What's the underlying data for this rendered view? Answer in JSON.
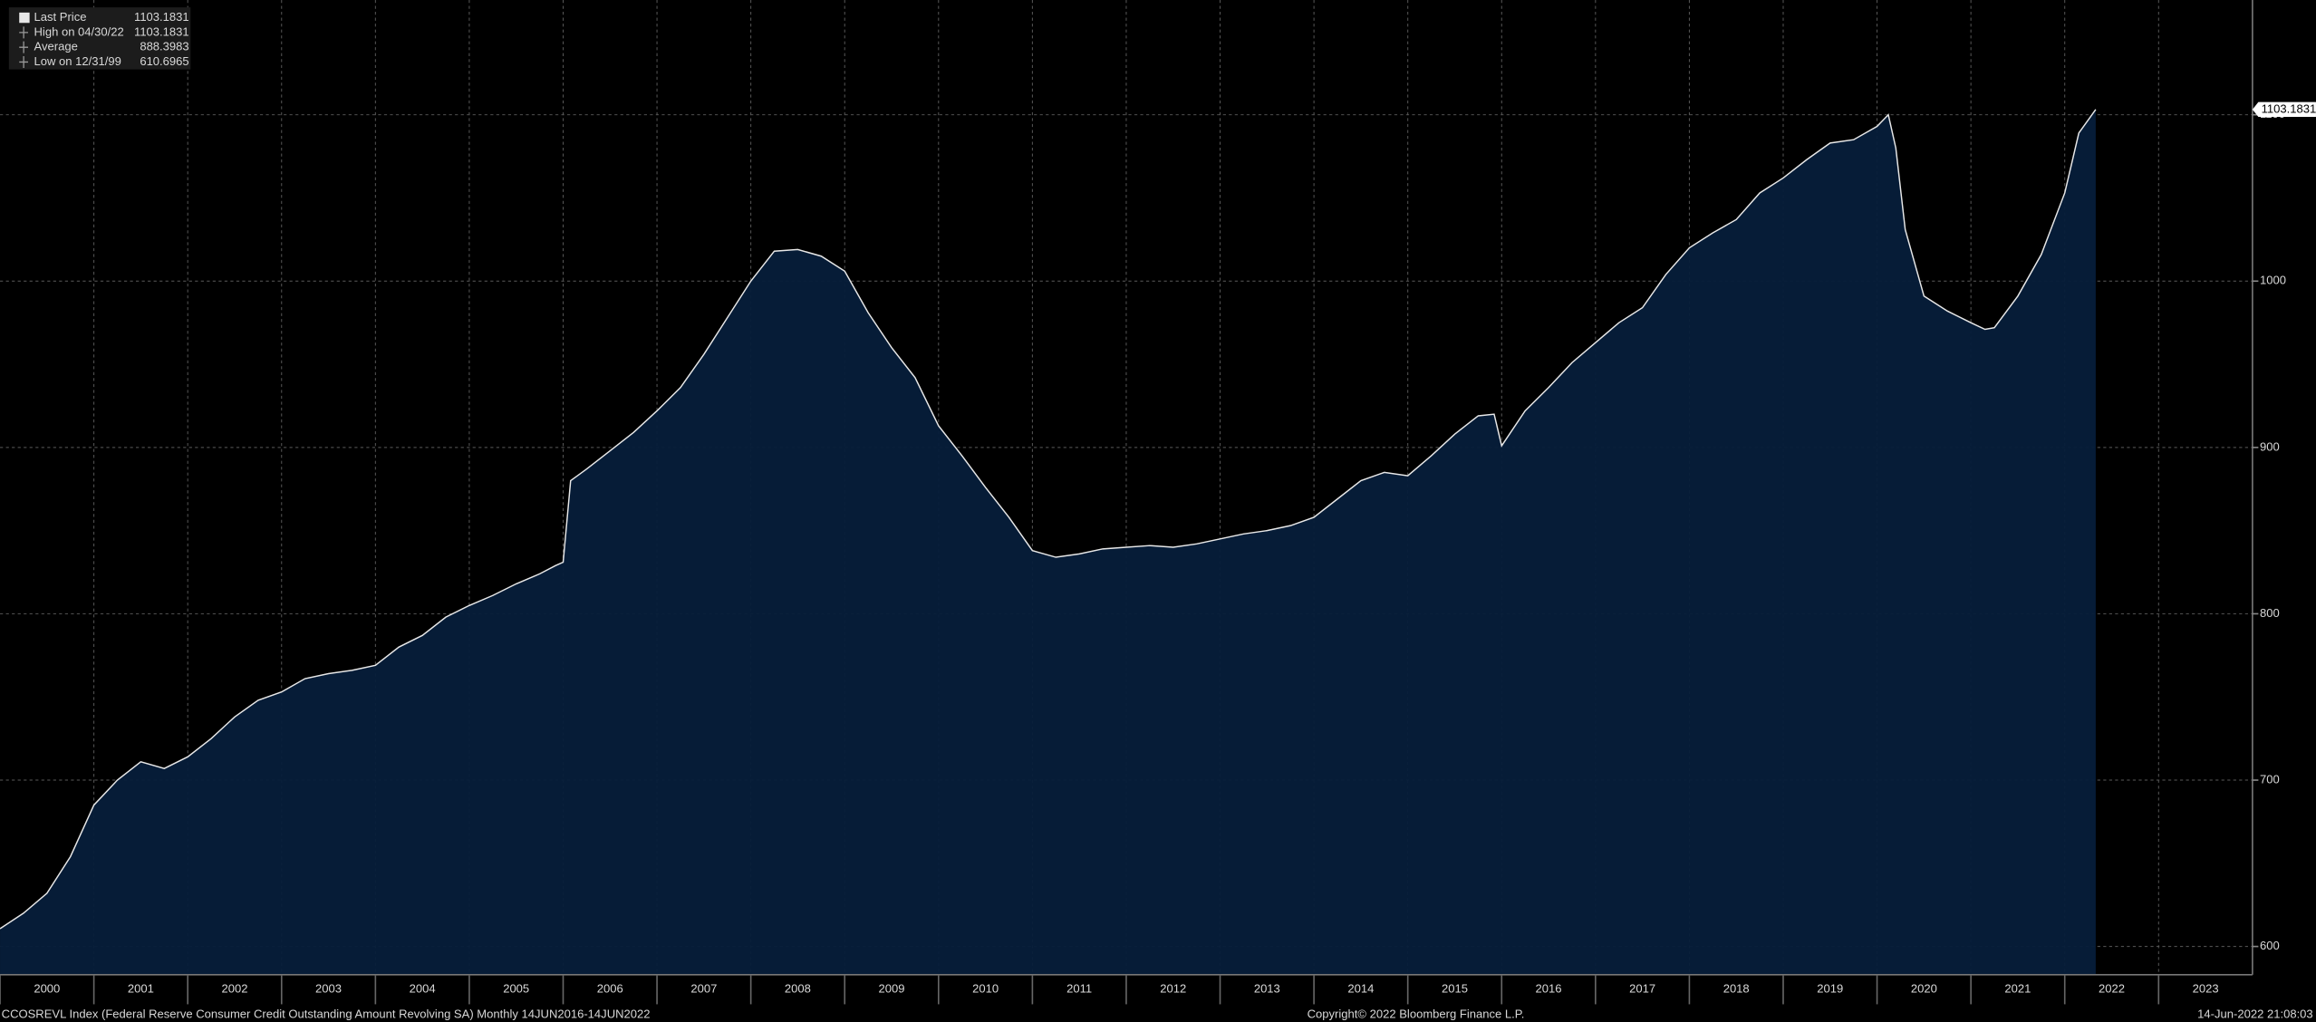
{
  "chart_data": {
    "type": "area",
    "series": [
      {
        "name": "Last Price",
        "color": "#e8e8e8",
        "fill": "#061d3a",
        "x": [
          2000.0,
          2000.25,
          2000.5,
          2000.75,
          2001.0,
          2001.25,
          2001.5,
          2001.75,
          2002.0,
          2002.25,
          2002.5,
          2002.75,
          2003.0,
          2003.25,
          2003.5,
          2003.75,
          2004.0,
          2004.25,
          2004.5,
          2004.75,
          2005.0,
          2005.25,
          2005.5,
          2005.75,
          2005.92,
          2006.0,
          2006.08,
          2006.25,
          2006.5,
          2006.75,
          2007.0,
          2007.25,
          2007.5,
          2007.75,
          2008.0,
          2008.25,
          2008.5,
          2008.75,
          2009.0,
          2009.25,
          2009.5,
          2009.75,
          2010.0,
          2010.25,
          2010.5,
          2010.75,
          2011.0,
          2011.25,
          2011.5,
          2011.75,
          2012.0,
          2012.25,
          2012.5,
          2012.75,
          2013.0,
          2013.25,
          2013.5,
          2013.75,
          2014.0,
          2014.25,
          2014.5,
          2014.75,
          2015.0,
          2015.25,
          2015.5,
          2015.75,
          2015.92,
          2016.0,
          2016.25,
          2016.5,
          2016.75,
          2017.0,
          2017.25,
          2017.5,
          2017.75,
          2018.0,
          2018.25,
          2018.5,
          2018.75,
          2019.0,
          2019.25,
          2019.5,
          2019.75,
          2020.0,
          2020.12,
          2020.2,
          2020.3,
          2020.5,
          2020.75,
          2021.0,
          2021.15,
          2021.25,
          2021.5,
          2021.75,
          2022.0,
          2022.15,
          2022.33
        ],
        "values": [
          610.6965,
          620,
          632,
          654,
          685,
          700,
          711,
          707,
          714,
          725,
          738,
          748,
          753,
          761,
          764,
          766,
          769,
          780,
          787,
          798,
          805,
          811,
          818,
          824,
          829,
          831,
          880,
          887,
          898,
          909,
          922,
          936,
          956,
          978,
          1000,
          1018,
          1019,
          1015,
          1006,
          981,
          960,
          942,
          913,
          895,
          876,
          858,
          838,
          834,
          836,
          839,
          840,
          841,
          840,
          842,
          845,
          848,
          850,
          853,
          858,
          869,
          880,
          885,
          883,
          895,
          908,
          919,
          920,
          901,
          922,
          936,
          951,
          963,
          975,
          984,
          1004,
          1020,
          1029,
          1037,
          1053,
          1062,
          1073,
          1083,
          1085,
          1093,
          1100,
          1080,
          1031,
          991,
          982,
          975,
          971,
          972,
          991,
          1016,
          1053,
          1089,
          1103.1831
        ]
      }
    ],
    "xlim": [
      2000,
      2024
    ],
    "xticks": [
      2000,
      2001,
      2002,
      2003,
      2004,
      2005,
      2006,
      2007,
      2008,
      2009,
      2010,
      2011,
      2012,
      2013,
      2014,
      2015,
      2016,
      2017,
      2018,
      2019,
      2020,
      2021,
      2022,
      2023
    ],
    "ylim": [
      583,
      1169
    ],
    "yticks": [
      600,
      700,
      800,
      900,
      1000,
      1100
    ],
    "grid": true,
    "legend": [
      {
        "label": "Last Price",
        "value": 1103.1831
      },
      {
        "label": "High on 04/30/22",
        "value": 1103.1831
      },
      {
        "label": "Average",
        "value": 888.3983
      },
      {
        "label": "Low on 12/31/99",
        "value": 610.6965
      }
    ],
    "footer": {
      "description": "CCOSREVL Index (Federal Reserve Consumer Credit Outstanding Amount Revolving SA)  Monthly 14JUN2016-14JUN2022",
      "copyright": "Copyright© 2022 Bloomberg Finance L.P.",
      "timestamp": "14-Jun-2022 21:08:03"
    }
  }
}
